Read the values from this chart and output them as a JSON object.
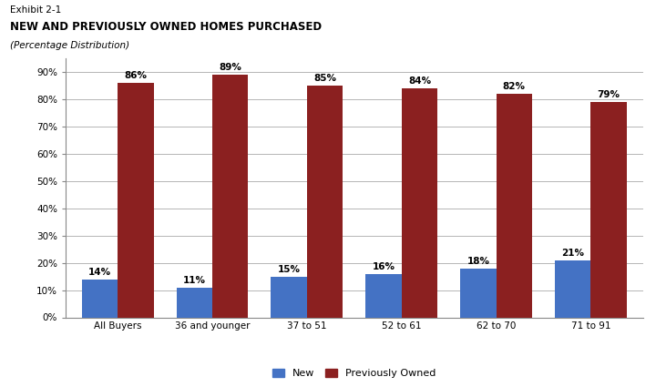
{
  "title_line1": "Exhibit 2-1",
  "title_line2": "NEW AND PREVIOUSLY OWNED HOMES PURCHASED",
  "title_line3": "(Percentage Distribution)",
  "categories": [
    "All Buyers",
    "36 and younger",
    "37 to 51",
    "52 to 61",
    "62 to 70",
    "71 to 91"
  ],
  "new_values": [
    14,
    11,
    15,
    16,
    18,
    21
  ],
  "prev_values": [
    86,
    89,
    85,
    84,
    82,
    79
  ],
  "new_color": "#4472C4",
  "prev_color": "#8B2020",
  "bar_width": 0.38,
  "ylim": [
    0,
    95
  ],
  "yticks": [
    0,
    10,
    20,
    30,
    40,
    50,
    60,
    70,
    80,
    90
  ],
  "ytick_labels": [
    "0%",
    "10%",
    "20%",
    "30%",
    "40%",
    "50%",
    "60%",
    "70%",
    "80%",
    "90%"
  ],
  "legend_new": "New",
  "legend_prev": "Previously Owned",
  "fig_bg_color": "#FFFFFF",
  "plot_bg_color": "#FFFFFF"
}
